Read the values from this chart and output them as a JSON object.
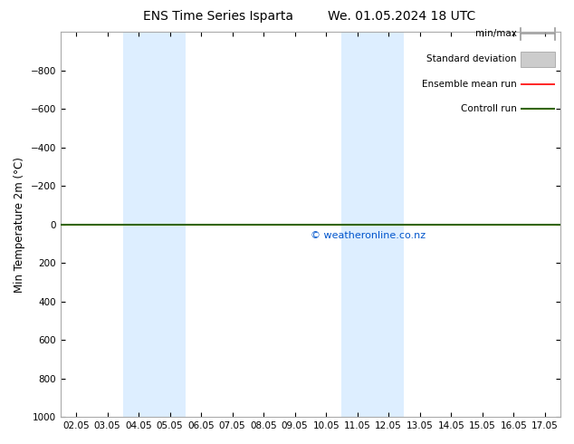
{
  "title_left": "ENS Time Series Isparta",
  "title_right": "We. 01.05.2024 18 UTC",
  "ylabel": "Min Temperature 2m (°C)",
  "xlim_min": -0.5,
  "xlim_max": 15.5,
  "ylim_top": -1000,
  "ylim_bottom": 1000,
  "yticks": [
    -800,
    -600,
    -400,
    -200,
    0,
    200,
    400,
    600,
    800,
    1000
  ],
  "xtick_labels": [
    "02.05",
    "03.05",
    "04.05",
    "05.05",
    "06.05",
    "07.05",
    "08.05",
    "09.05",
    "10.05",
    "11.05",
    "12.05",
    "13.05",
    "14.05",
    "15.05",
    "16.05",
    "17.05"
  ],
  "shaded_bands": [
    {
      "x_start": 2.0,
      "x_end": 4.0
    },
    {
      "x_start": 9.0,
      "x_end": 11.0
    }
  ],
  "band_color": "#ddeeff",
  "green_line_y": 0,
  "red_line_y": 0,
  "watermark": "© weatheronline.co.nz",
  "watermark_color": "#0055cc",
  "background_color": "#ffffff",
  "legend_items": [
    {
      "label": "min/max",
      "color": "#999999",
      "lw": 1.2,
      "style": "line_with_tick"
    },
    {
      "label": "Standard deviation",
      "color": "#cccccc",
      "lw": 5,
      "style": "band"
    },
    {
      "label": "Ensemble mean run",
      "color": "#ff0000",
      "lw": 1.2,
      "style": "line"
    },
    {
      "label": "Controll run",
      "color": "#336600",
      "lw": 1.5,
      "style": "line"
    }
  ],
  "border_color": "#aaaaaa",
  "title_fontsize": 10,
  "tick_fontsize": 7.5,
  "ylabel_fontsize": 8.5,
  "legend_fontsize": 7.5,
  "watermark_fontsize": 8
}
